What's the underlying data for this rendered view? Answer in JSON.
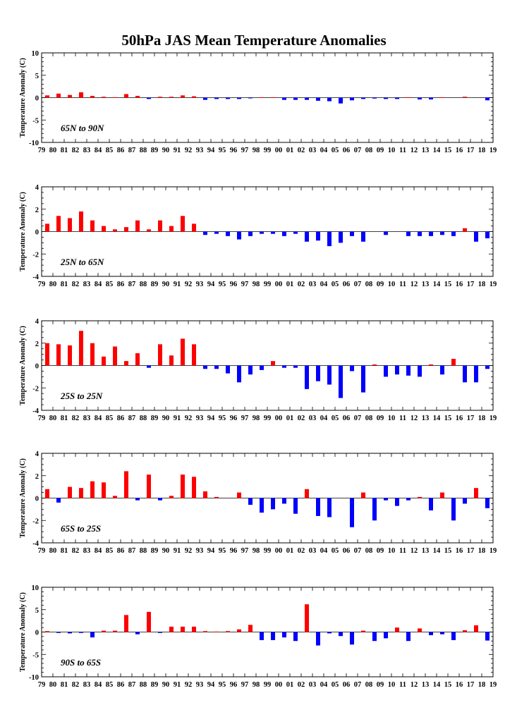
{
  "figure": {
    "title": "50hPa JAS Mean Temperature Anomalies"
  },
  "colors": {
    "positive": "#ff0000",
    "negative": "#0000ff",
    "axis": "#000000"
  },
  "chart_data": [
    {
      "type": "bar",
      "region_label": "65N to 90N",
      "ylabel": "Temperature Anomaly (C)",
      "ylim": [
        -10,
        10
      ],
      "yticks": [
        "-10",
        "-5",
        "0",
        "5",
        "10"
      ],
      "x_tick_labels": [
        "79",
        "80",
        "81",
        "82",
        "83",
        "84",
        "85",
        "86",
        "87",
        "88",
        "89",
        "90",
        "91",
        "92",
        "93",
        "94",
        "95",
        "96",
        "97",
        "98",
        "99",
        "00",
        "01",
        "02",
        "03",
        "04",
        "05",
        "06",
        "07",
        "08",
        "09",
        "10",
        "11",
        "12",
        "13",
        "14",
        "15",
        "16",
        "17",
        "18",
        "19"
      ],
      "years": [
        1979,
        1980,
        1981,
        1982,
        1983,
        1984,
        1985,
        1986,
        1987,
        1988,
        1989,
        1990,
        1991,
        1992,
        1993,
        1994,
        1995,
        1996,
        1997,
        1998,
        1999,
        2000,
        2001,
        2002,
        2003,
        2004,
        2005,
        2006,
        2007,
        2008,
        2009,
        2010,
        2011,
        2012,
        2013,
        2014,
        2015,
        2016,
        2017,
        2018,
        2019
      ],
      "values": [
        0.5,
        0.9,
        0.6,
        1.2,
        0.4,
        0.2,
        0.1,
        0.8,
        0.4,
        -0.3,
        0.2,
        0.2,
        0.5,
        0.3,
        -0.5,
        -0.3,
        -0.3,
        -0.3,
        -0.1,
        0.1,
        0.1,
        -0.5,
        -0.5,
        -0.5,
        -0.7,
        -0.8,
        -1.3,
        -0.6,
        -0.3,
        -0.2,
        -0.3,
        -0.3,
        0.1,
        -0.4,
        -0.4,
        0.1,
        0.0,
        0.2,
        0.0,
        -0.6,
        0.1
      ]
    },
    {
      "type": "bar",
      "region_label": "25N to 65N",
      "ylabel": "Temperature Anomaly (C)",
      "ylim": [
        -4,
        4
      ],
      "yticks": [
        "-4",
        "-2",
        "0",
        "2",
        "4"
      ],
      "x_tick_labels": [
        "79",
        "80",
        "81",
        "82",
        "83",
        "84",
        "85",
        "86",
        "87",
        "88",
        "89",
        "90",
        "91",
        "92",
        "93",
        "94",
        "95",
        "96",
        "97",
        "98",
        "99",
        "00",
        "01",
        "02",
        "03",
        "04",
        "05",
        "06",
        "07",
        "08",
        "09",
        "10",
        "11",
        "12",
        "13",
        "14",
        "15",
        "16",
        "17",
        "18",
        "19"
      ],
      "years": [
        1979,
        1980,
        1981,
        1982,
        1983,
        1984,
        1985,
        1986,
        1987,
        1988,
        1989,
        1990,
        1991,
        1992,
        1993,
        1994,
        1995,
        1996,
        1997,
        1998,
        1999,
        2000,
        2001,
        2002,
        2003,
        2004,
        2005,
        2006,
        2007,
        2008,
        2009,
        2010,
        2011,
        2012,
        2013,
        2014,
        2015,
        2016,
        2017,
        2018,
        2019
      ],
      "values": [
        0.7,
        1.4,
        1.2,
        1.8,
        1.0,
        0.5,
        0.2,
        0.4,
        1.0,
        0.2,
        1.0,
        0.5,
        1.4,
        0.7,
        -0.3,
        -0.2,
        -0.4,
        -0.7,
        -0.4,
        -0.2,
        -0.2,
        -0.4,
        -0.2,
        -0.9,
        -0.8,
        -1.3,
        -1.0,
        -0.4,
        -0.9,
        0.0,
        -0.3,
        0.0,
        -0.4,
        -0.4,
        -0.4,
        -0.3,
        -0.4,
        0.3,
        -0.9,
        -0.6,
        -0.3
      ]
    },
    {
      "type": "bar",
      "region_label": "25S to 25N",
      "ylabel": "Temperature Anomaly (C)",
      "ylim": [
        -4,
        4
      ],
      "yticks": [
        "-4",
        "-2",
        "0",
        "2",
        "4"
      ],
      "x_tick_labels": [
        "79",
        "80",
        "81",
        "82",
        "83",
        "84",
        "85",
        "86",
        "87",
        "88",
        "89",
        "90",
        "91",
        "92",
        "93",
        "94",
        "95",
        "96",
        "97",
        "98",
        "99",
        "00",
        "01",
        "02",
        "03",
        "04",
        "05",
        "06",
        "07",
        "08",
        "09",
        "10",
        "11",
        "12",
        "13",
        "14",
        "15",
        "16",
        "17",
        "18",
        "19"
      ],
      "years": [
        1979,
        1980,
        1981,
        1982,
        1983,
        1984,
        1985,
        1986,
        1987,
        1988,
        1989,
        1990,
        1991,
        1992,
        1993,
        1994,
        1995,
        1996,
        1997,
        1998,
        1999,
        2000,
        2001,
        2002,
        2003,
        2004,
        2005,
        2006,
        2007,
        2008,
        2009,
        2010,
        2011,
        2012,
        2013,
        2014,
        2015,
        2016,
        2017,
        2018,
        2019
      ],
      "values": [
        2.0,
        1.9,
        1.8,
        3.1,
        2.0,
        0.8,
        1.7,
        0.4,
        1.1,
        -0.2,
        1.9,
        0.9,
        2.4,
        1.9,
        -0.3,
        -0.3,
        -0.7,
        -1.5,
        -0.8,
        -0.4,
        0.4,
        -0.2,
        -0.2,
        -2.1,
        -1.4,
        -1.7,
        -2.9,
        -0.5,
        -2.4,
        0.1,
        -1.0,
        -0.8,
        -0.9,
        -1.0,
        0.1,
        -0.8,
        0.6,
        -1.5,
        -1.5,
        -0.3,
        0.0
      ]
    },
    {
      "type": "bar",
      "region_label": "65S to 25S",
      "ylabel": "Temperature Anomaly (C)",
      "ylim": [
        -4,
        4
      ],
      "yticks": [
        "-4",
        "-2",
        "0",
        "2",
        "4"
      ],
      "x_tick_labels": [
        "79",
        "80",
        "81",
        "82",
        "83",
        "84",
        "85",
        "86",
        "87",
        "88",
        "89",
        "90",
        "91",
        "92",
        "93",
        "94",
        "95",
        "96",
        "97",
        "98",
        "99",
        "00",
        "01",
        "02",
        "03",
        "04",
        "05",
        "06",
        "07",
        "08",
        "09",
        "10",
        "11",
        "12",
        "13",
        "14",
        "15",
        "16",
        "17",
        "18",
        "19"
      ],
      "years": [
        1979,
        1980,
        1981,
        1982,
        1983,
        1984,
        1985,
        1986,
        1987,
        1988,
        1989,
        1990,
        1991,
        1992,
        1993,
        1994,
        1995,
        1996,
        1997,
        1998,
        1999,
        2000,
        2001,
        2002,
        2003,
        2004,
        2005,
        2006,
        2007,
        2008,
        2009,
        2010,
        2011,
        2012,
        2013,
        2014,
        2015,
        2016,
        2017,
        2018,
        2019
      ],
      "values": [
        0.8,
        -0.4,
        1.0,
        0.9,
        1.5,
        1.4,
        0.2,
        2.4,
        -0.2,
        2.1,
        -0.2,
        0.2,
        2.1,
        1.9,
        0.6,
        0.1,
        0.0,
        0.5,
        -0.6,
        -1.3,
        -1.0,
        -0.5,
        -1.4,
        0.8,
        -1.6,
        -1.7,
        0.0,
        -2.6,
        0.5,
        -2.0,
        -0.2,
        -0.7,
        -0.2,
        0.1,
        -1.1,
        0.5,
        -2.0,
        -0.5,
        0.9,
        -0.9,
        0.0
      ]
    },
    {
      "type": "bar",
      "region_label": "90S to 65S",
      "ylabel": "Temperature Anomaly (C)",
      "ylim": [
        -10,
        10
      ],
      "yticks": [
        "-10",
        "-5",
        "0",
        "5",
        "10"
      ],
      "x_tick_labels": [
        "79",
        "80",
        "81",
        "82",
        "83",
        "84",
        "85",
        "86",
        "87",
        "88",
        "89",
        "90",
        "91",
        "92",
        "93",
        "94",
        "95",
        "96",
        "97",
        "98",
        "99",
        "00",
        "01",
        "02",
        "03",
        "04",
        "05",
        "06",
        "07",
        "08",
        "09",
        "10",
        "11",
        "12",
        "13",
        "14",
        "15",
        "16",
        "17",
        "18",
        "19"
      ],
      "years": [
        1979,
        1980,
        1981,
        1982,
        1983,
        1984,
        1985,
        1986,
        1987,
        1988,
        1989,
        1990,
        1991,
        1992,
        1993,
        1994,
        1995,
        1996,
        1997,
        1998,
        1999,
        2000,
        2001,
        2002,
        2003,
        2004,
        2005,
        2006,
        2007,
        2008,
        2009,
        2010,
        2011,
        2012,
        2013,
        2014,
        2015,
        2016,
        2017,
        2018,
        2019
      ],
      "values": [
        0.2,
        -0.2,
        -0.3,
        -0.2,
        -1.2,
        0.3,
        0.3,
        3.8,
        -0.5,
        4.5,
        -0.2,
        1.2,
        1.2,
        1.2,
        0.2,
        0.1,
        0.2,
        0.6,
        1.6,
        -1.8,
        -1.8,
        -1.2,
        -2.0,
        6.2,
        -3.0,
        -0.3,
        -0.9,
        -2.8,
        0.3,
        -2.0,
        -1.4,
        1.0,
        -2.0,
        0.8,
        -0.7,
        -0.5,
        -1.8,
        0.4,
        1.5,
        -1.9,
        0.0
      ]
    }
  ]
}
